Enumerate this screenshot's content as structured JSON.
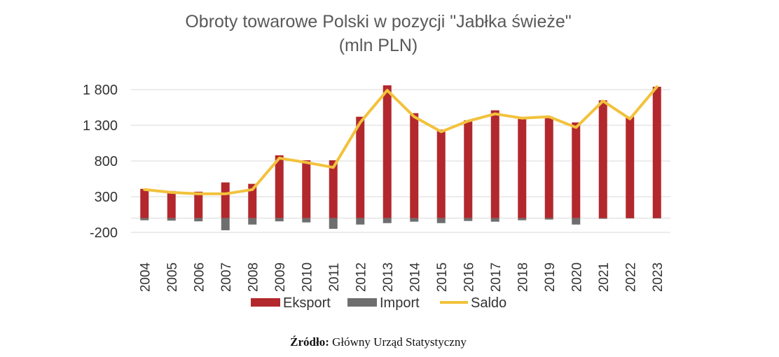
{
  "chart_data": {
    "type": "bar",
    "title": "Obroty towarowe Polski w pozycji \"Jabłka świeże\"",
    "subtitle": "(mln PLN)",
    "categories": [
      "2004",
      "2005",
      "2006",
      "2007",
      "2008",
      "2009",
      "2010",
      "2011",
      "2012",
      "2013",
      "2014",
      "2015",
      "2016",
      "2017",
      "2018",
      "2019",
      "2020",
      "2021",
      "2022",
      "2023"
    ],
    "series": [
      {
        "name": "Eksport",
        "kind": "bar",
        "color": "#b3282d",
        "values": [
          410,
          380,
          370,
          500,
          480,
          880,
          810,
          810,
          1420,
          1860,
          1470,
          1240,
          1370,
          1510,
          1410,
          1420,
          1340,
          1650,
          1420,
          1840
        ]
      },
      {
        "name": "Import",
        "kind": "bar",
        "color": "#6e6e6e",
        "values": [
          -30,
          -35,
          -45,
          -170,
          -90,
          -45,
          -60,
          -150,
          -90,
          -70,
          -50,
          -70,
          -40,
          -50,
          -30,
          -20,
          -90,
          -10,
          -5,
          -5
        ]
      },
      {
        "name": "Saldo",
        "kind": "line",
        "color": "#f2c23c",
        "values": [
          400,
          360,
          340,
          340,
          400,
          840,
          780,
          710,
          1340,
          1790,
          1420,
          1210,
          1360,
          1460,
          1400,
          1420,
          1270,
          1640,
          1390,
          1840
        ]
      }
    ],
    "y_ticks": [
      "1 800",
      "1 300",
      "800",
      "300",
      "-200"
    ],
    "y_tick_values": [
      1800,
      1300,
      800,
      300,
      -200
    ],
    "ylim": [
      -200,
      1800
    ],
    "grid": true,
    "legend_position": "bottom"
  },
  "source": {
    "label": "Źródło:",
    "text": " Główny Urząd Statystyczny"
  }
}
